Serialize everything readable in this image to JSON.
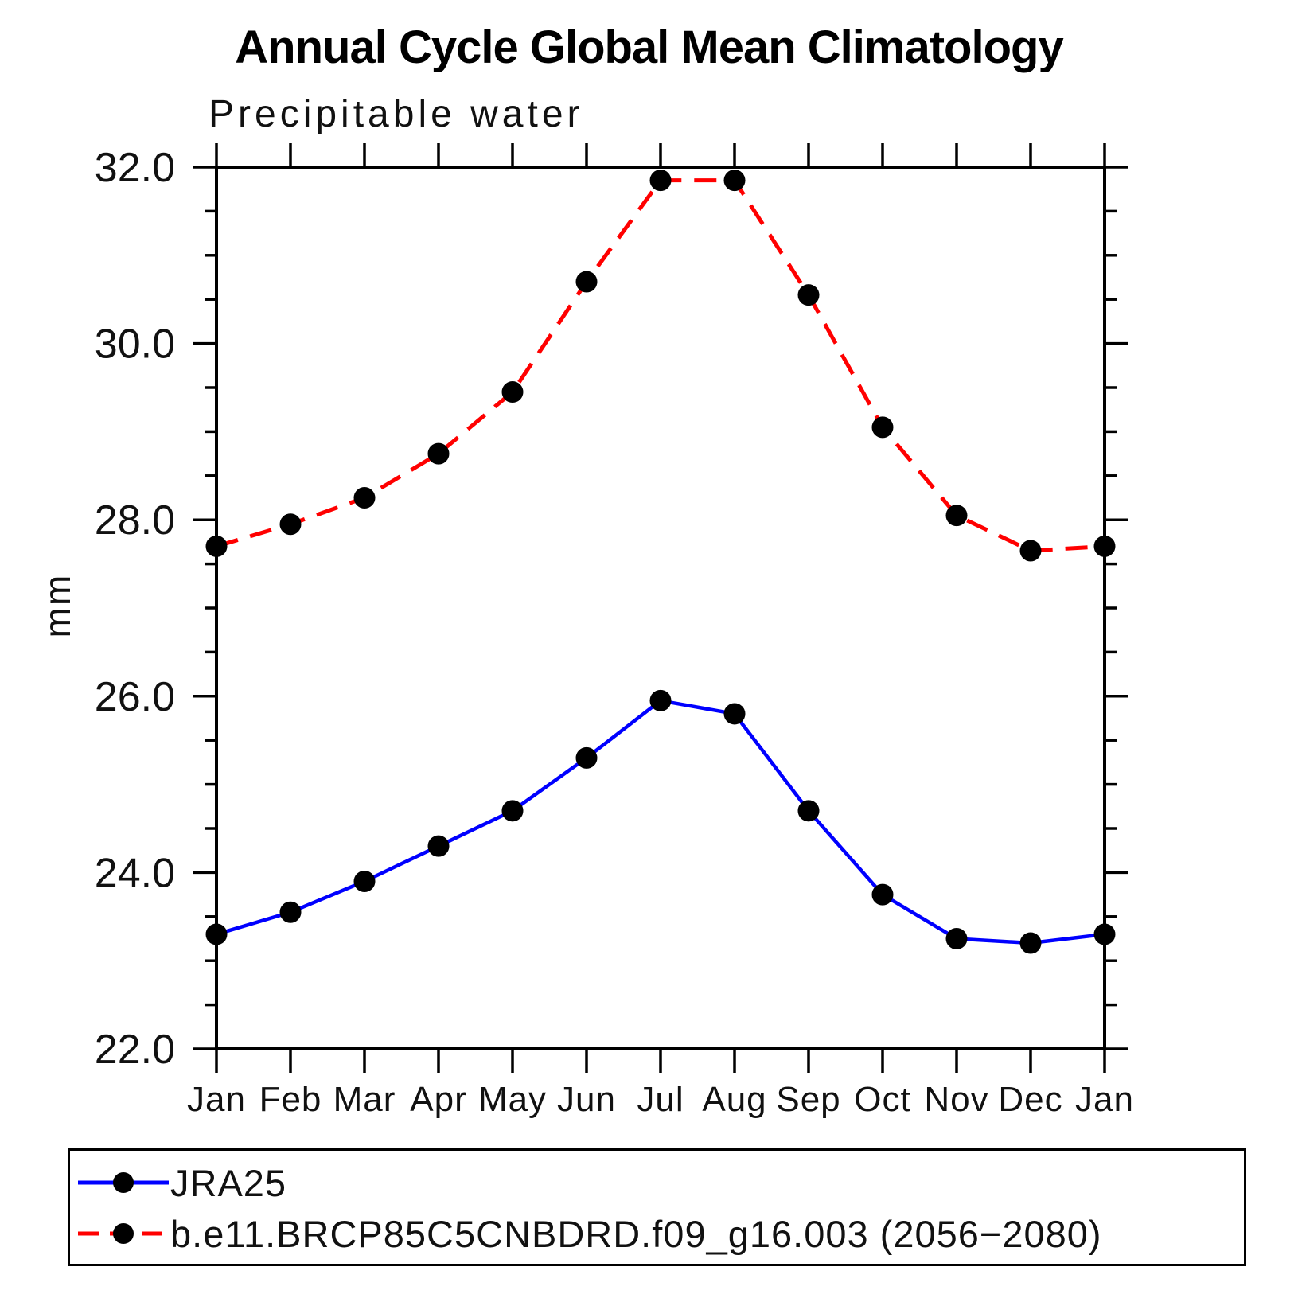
{
  "title": "Annual Cycle Global Mean Climatology",
  "subtitle": "Precipitable water",
  "ylabel": "mm",
  "chart_data": {
    "type": "line",
    "x_categories": [
      "Jan",
      "Feb",
      "Mar",
      "Apr",
      "May",
      "Jun",
      "Jul",
      "Aug",
      "Sep",
      "Oct",
      "Nov",
      "Dec",
      "Jan"
    ],
    "series": [
      {
        "name": "JRA25",
        "color": "#0000ff",
        "line_style": "solid",
        "marker": "filled-circle",
        "marker_color": "#000000",
        "values": [
          23.3,
          23.55,
          23.9,
          24.3,
          24.7,
          25.3,
          25.95,
          25.8,
          24.7,
          23.75,
          23.25,
          23.2,
          23.3
        ]
      },
      {
        "name": "b.e11.BRCP85C5CNBDRD.f09_g16.003 (2056−2080)",
        "color": "#ff0000",
        "line_style": "dashed",
        "marker": "filled-circle",
        "marker_color": "#000000",
        "values": [
          27.7,
          27.95,
          28.25,
          28.75,
          29.45,
          30.7,
          31.85,
          31.85,
          30.55,
          29.05,
          28.05,
          27.65,
          27.7
        ]
      }
    ],
    "ylim": [
      22.0,
      32.0
    ],
    "y_major_ticks": [
      22.0,
      24.0,
      26.0,
      28.0,
      30.0,
      32.0
    ],
    "y_tick_labels": [
      "22.0",
      "24.0",
      "26.0",
      "28.0",
      "30.0",
      "32.0"
    ],
    "y_minor_step": 0.5,
    "grid": "off",
    "axis_color": "#000000",
    "legend_position": "bottom-left-box"
  }
}
